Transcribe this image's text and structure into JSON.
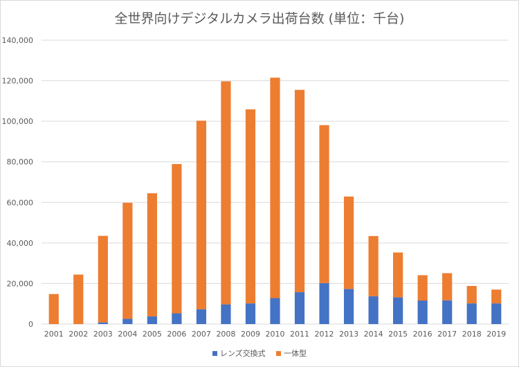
{
  "chart_data": {
    "type": "bar",
    "stacked": true,
    "title": "全世界向けデジタルカメラ出荷台数 (単位：千台)",
    "categories": [
      "2001",
      "2002",
      "2003",
      "2004",
      "2005",
      "2006",
      "2007",
      "2008",
      "2009",
      "2010",
      "2011",
      "2012",
      "2013",
      "2014",
      "2015",
      "2016",
      "2017",
      "2018",
      "2019"
    ],
    "series": [
      {
        "name": "レンズ交換式",
        "color": "#4472c4",
        "values": [
          0,
          0,
          800,
          2600,
          3800,
          5300,
          7300,
          9700,
          10200,
          12800,
          15700,
          20200,
          17300,
          13700,
          13200,
          11600,
          11700,
          10200,
          10200
        ]
      },
      {
        "name": "一体型",
        "color": "#ed7d31",
        "values": [
          14800,
          24400,
          42700,
          57200,
          60700,
          73600,
          93000,
          110000,
          95700,
          108700,
          99800,
          77900,
          45600,
          29700,
          22100,
          12500,
          13400,
          8600,
          6800
        ]
      }
    ],
    "ylim": [
      0,
      140000
    ],
    "yticks": [
      0,
      20000,
      40000,
      60000,
      80000,
      100000,
      120000,
      140000
    ],
    "ytick_labels": [
      "0",
      "20,000",
      "40,000",
      "60,000",
      "80,000",
      "100,000",
      "120,000",
      "140,000"
    ],
    "grid": true,
    "legend_position": "bottom"
  }
}
